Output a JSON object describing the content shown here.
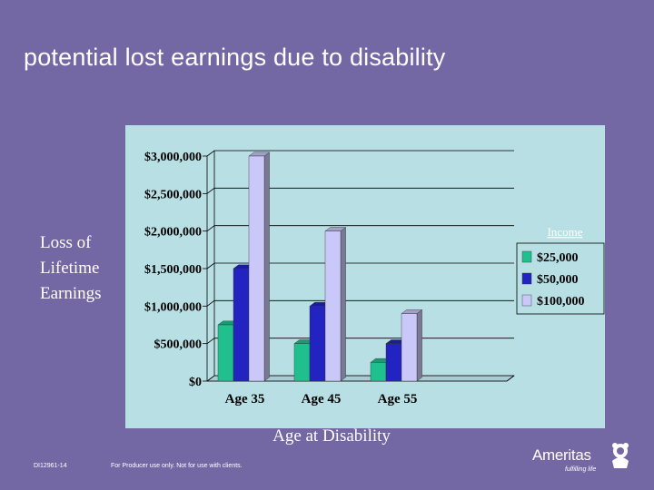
{
  "slide": {
    "title": "potential lost earnings due to disability",
    "ylabel_lines": [
      "Loss of",
      "Lifetime",
      "Earnings"
    ],
    "xlabel": "Age at Disability",
    "footer_code": "DI12961-14",
    "footer_note": "For Producer use only. Not for use with clients.",
    "brand": {
      "name": "Ameritas",
      "tagline": "fulfilling life",
      "logo_icon": "lion-icon"
    },
    "colors": {
      "background": "#7468a4",
      "chart_background": "#b8dfe4"
    }
  },
  "chart_data": {
    "type": "bar",
    "categories": [
      "Age 35",
      "Age 45",
      "Age 55"
    ],
    "legend_title": "Income",
    "legend_position": "right",
    "grid": true,
    "ylim": [
      0,
      3000000
    ],
    "yticks": [
      0,
      500000,
      1000000,
      1500000,
      2000000,
      2500000,
      3000000
    ],
    "ytick_labels": [
      "$0",
      "$500,000",
      "$1,000,000",
      "$1,500,000",
      "$2,000,000",
      "$2,500,000",
      "$3,000,000"
    ],
    "series": [
      {
        "name": "$25,000",
        "color": "#1fc08e",
        "values": [
          750000,
          500000,
          250000
        ]
      },
      {
        "name": "$50,000",
        "color": "#2323c2",
        "values": [
          1500000,
          1000000,
          500000
        ]
      },
      {
        "name": "$100,000",
        "color": "#c9c8f8",
        "values": [
          3000000,
          2000000,
          900000
        ]
      }
    ]
  }
}
